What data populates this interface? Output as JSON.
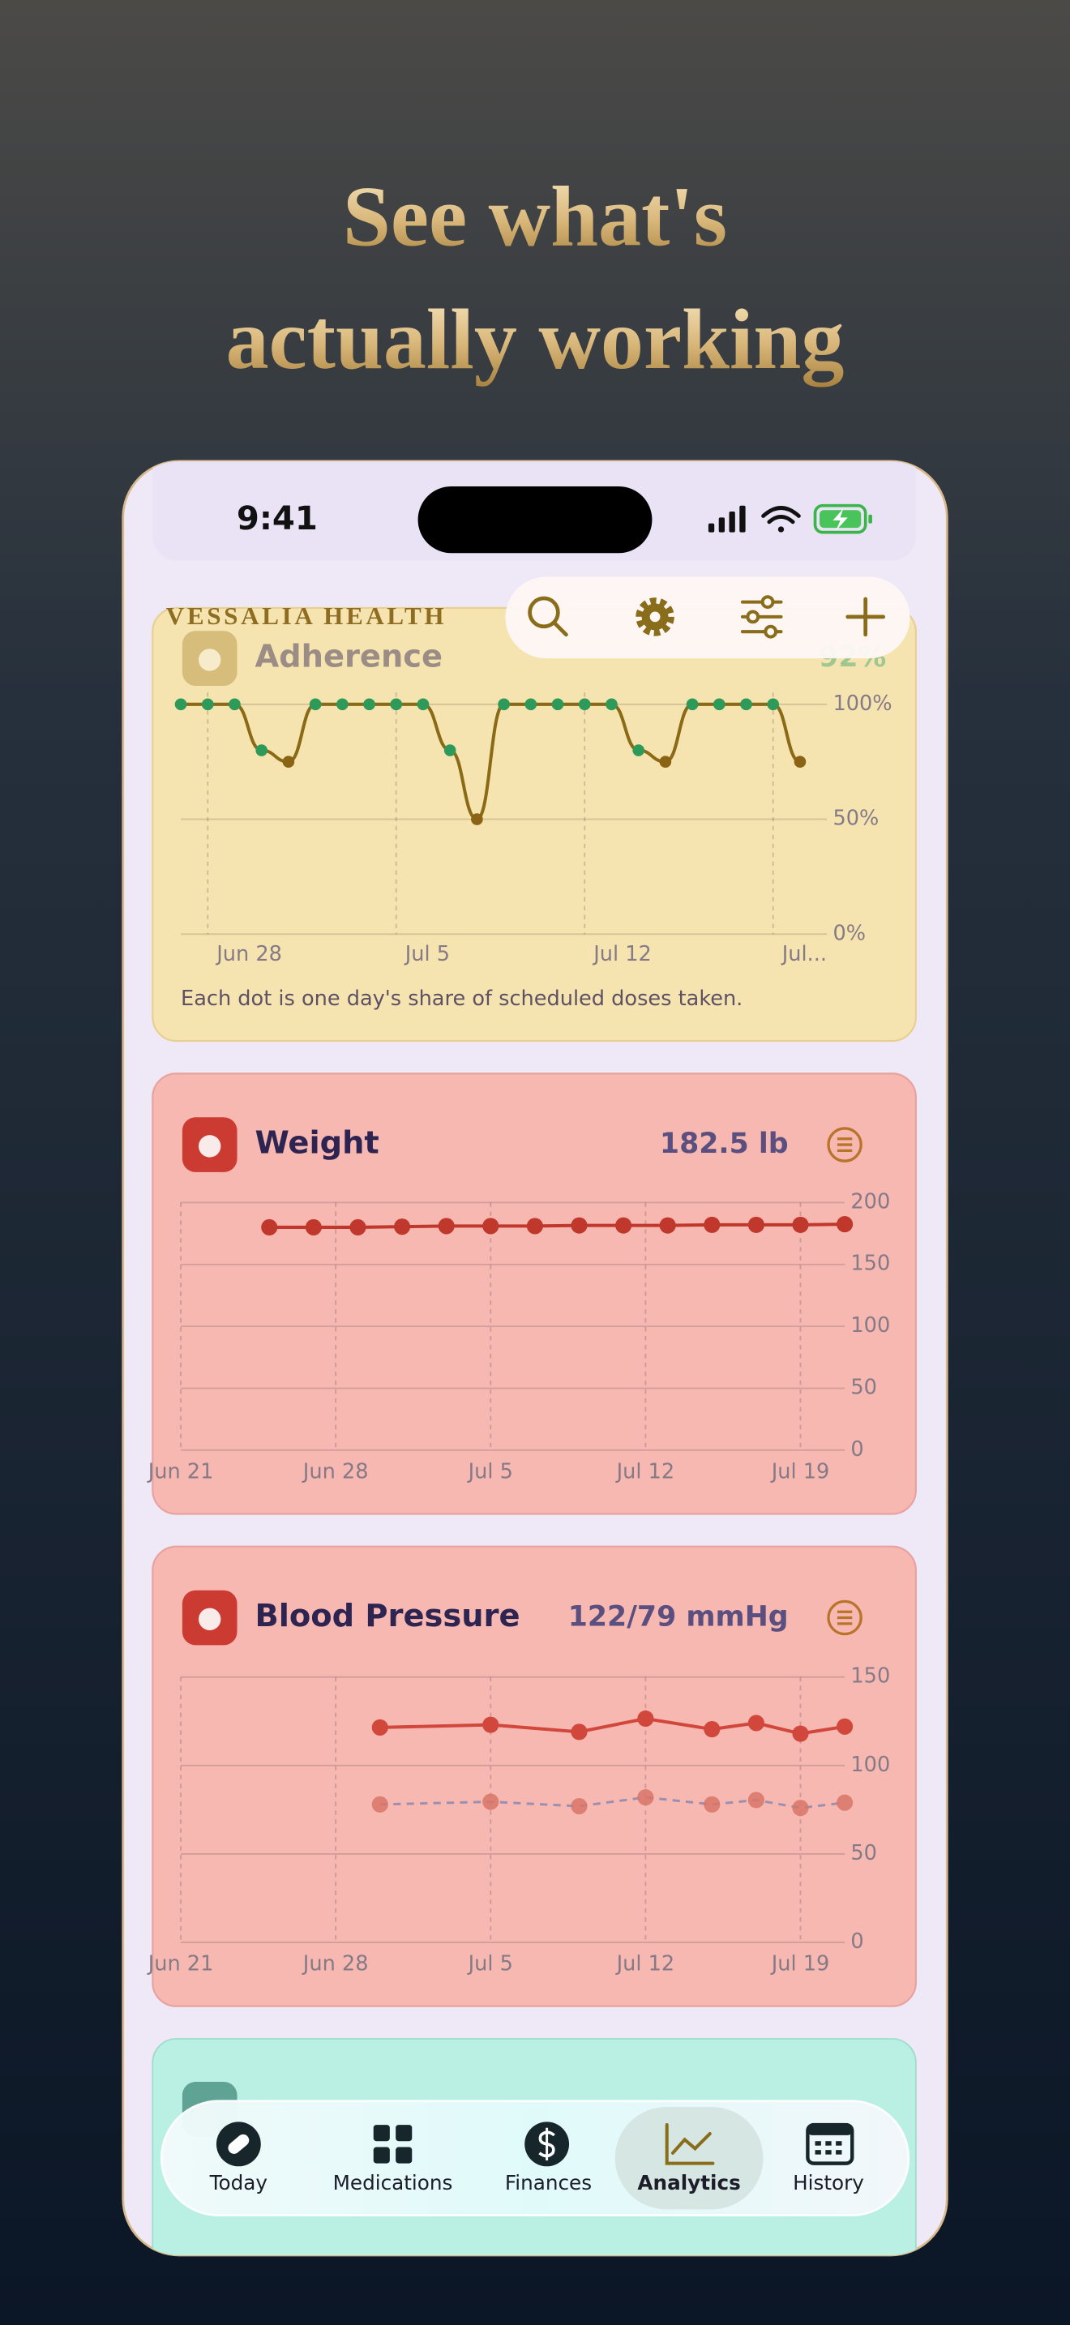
{
  "headline": [
    "See what's",
    "actually working"
  ],
  "status_time": "9:41",
  "brand": "VESSALIA HEALTH",
  "chart_data": [
    {
      "type": "line",
      "title": "Adherence",
      "summary": "92%",
      "caption": "Each dot is one day's share of scheduled doses taken.",
      "smooth": true,
      "color": "#8a6a16",
      "x": [
        "Jun 27",
        "Jun 28",
        "Jun 29",
        "Jun 30",
        "Jul 1",
        "Jul 2",
        "Jul 3",
        "Jul 4",
        "Jul 5",
        "Jul 6",
        "Jul 7",
        "Jul 8",
        "Jul 9",
        "Jul 10",
        "Jul 11",
        "Jul 12",
        "Jul 13",
        "Jul 14",
        "Jul 15",
        "Jul 16",
        "Jul 17",
        "Jul 18",
        "Jul 19",
        "Jul 20"
      ],
      "values": [
        100,
        100,
        100,
        80,
        75,
        100,
        100,
        100,
        100,
        100,
        80,
        50,
        100,
        100,
        100,
        100,
        100,
        80,
        75,
        100,
        100,
        100,
        100,
        75
      ],
      "point_colors": [
        "#2e9a5a",
        "#2e9a5a",
        "#2e9a5a",
        "#2e9a5a",
        "#8a6414",
        "#2e9a5a",
        "#2e9a5a",
        "#2e9a5a",
        "#2e9a5a",
        "#2e9a5a",
        "#2e9a5a",
        "#8a6414",
        "#2e9a5a",
        "#2e9a5a",
        "#2e9a5a",
        "#2e9a5a",
        "#2e9a5a",
        "#2e9a5a",
        "#8a6414",
        "#2e9a5a",
        "#2e9a5a",
        "#2e9a5a",
        "#2e9a5a",
        "#8a6414"
      ],
      "xlim": [
        "Jun 27",
        "Jul 21"
      ],
      "xticks": [
        "Jun 28",
        "Jul 5",
        "Jul 12",
        {
          "value": "Jul 19",
          "label": "Jul..."
        }
      ],
      "ylim": [
        0,
        100
      ],
      "yticks": [
        {
          "value": 0,
          "label": "0%"
        },
        {
          "value": 50,
          "label": "50%"
        },
        {
          "value": 100,
          "label": "100%"
        }
      ]
    },
    {
      "type": "line",
      "title": "Weight",
      "summary": "182.5 lb",
      "color": "#c0382c",
      "x": [
        "Jun 25",
        "Jun 27",
        "Jun 29",
        "Jul 1",
        "Jul 3",
        "Jul 5",
        "Jul 7",
        "Jul 9",
        "Jul 11",
        "Jul 13",
        "Jul 15",
        "Jul 17",
        "Jul 19",
        "Jul 21"
      ],
      "values": [
        180,
        180,
        180,
        180.5,
        181,
        181,
        181,
        181.5,
        181.5,
        181.5,
        182,
        182,
        182,
        182.5
      ],
      "xlim": [
        "Jun 21",
        "Jul 21"
      ],
      "xticks": [
        "Jun 21",
        "Jun 28",
        "Jul 5",
        "Jul 12",
        "Jul 19"
      ],
      "ylim": [
        0,
        200
      ],
      "yticks": [
        0,
        50,
        100,
        150,
        200
      ]
    },
    {
      "type": "line",
      "title": "Blood Pressure",
      "summary": "122/79 mmHg",
      "x": [
        "Jun 30",
        "Jul 5",
        "Jul 9",
        "Jul 12",
        "Jul 15",
        "Jul 17",
        "Jul 19",
        "Jul 21"
      ],
      "series": [
        {
          "color": "#d2473c",
          "values": [
            121.5,
            123,
            119,
            126.5,
            120.5,
            124,
            118,
            122
          ]
        },
        {
          "color": "#9a8fb0",
          "point_color": "#d97468",
          "dashed": true,
          "values": [
            78,
            79.5,
            77,
            82,
            78,
            80.5,
            76,
            79
          ]
        }
      ],
      "xlim": [
        "Jun 21",
        "Jul 21"
      ],
      "xticks": [
        "Jun 21",
        "Jun 28",
        "Jul 5",
        "Jul 12",
        "Jul 19"
      ],
      "ylim": [
        0,
        150
      ],
      "yticks": [
        0,
        50,
        100,
        150
      ]
    }
  ],
  "tabs": [
    "Today",
    "Medications",
    "Finances",
    "Analytics",
    "History"
  ],
  "selected_tab": 3
}
